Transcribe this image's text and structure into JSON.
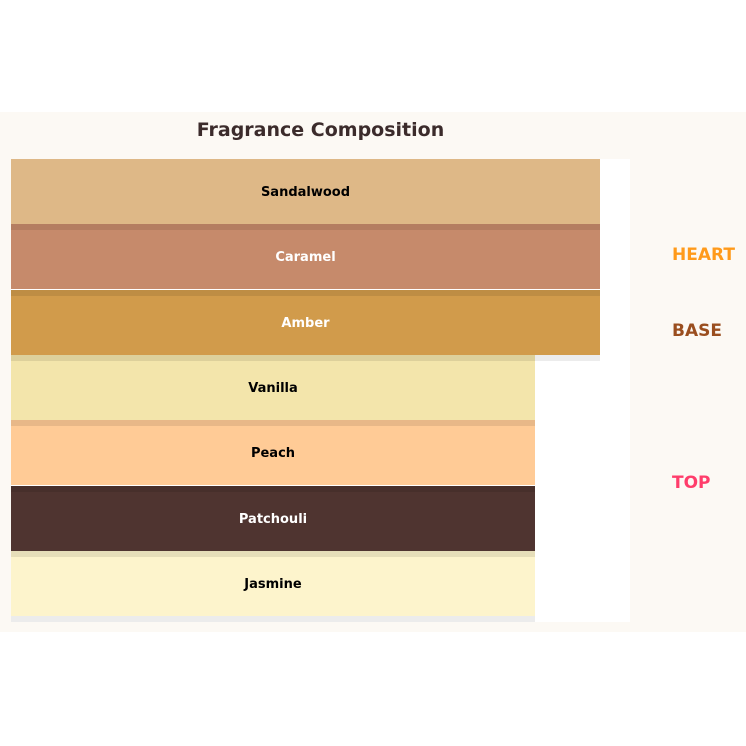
{
  "title": "Fragrance Composition",
  "layers": [
    {
      "label": "Sandalwood",
      "color": "#deb887",
      "text_color": "#000000",
      "relative_width": 1.0,
      "group": "base"
    },
    {
      "label": "Caramel",
      "color": "#c68a6b",
      "text_color": "#ffffff",
      "relative_width": 1.0,
      "group": "base"
    },
    {
      "label": "Amber",
      "color": "#d19b4b",
      "text_color": "#ffffff",
      "relative_width": 1.0,
      "group": "base"
    },
    {
      "label": "Vanilla",
      "color": "#f3e5ab",
      "text_color": "#000000",
      "relative_width": 0.89,
      "group": "top"
    },
    {
      "label": "Peach",
      "color": "#ffcb96",
      "text_color": "#000000",
      "relative_width": 0.89,
      "group": "top"
    },
    {
      "label": "Patchouli",
      "color": "#4f3430",
      "text_color": "#ffffff",
      "relative_width": 0.89,
      "group": "top"
    },
    {
      "label": "Jasmine",
      "color": "#fdf4cc",
      "text_color": "#000000",
      "relative_width": 0.89,
      "group": "top"
    }
  ],
  "tiers": [
    {
      "label": "HEART",
      "color": "#ff9a1a"
    },
    {
      "label": "BASE",
      "color": "#9a4e1f"
    },
    {
      "label": "TOP",
      "color": "#ff3d6b"
    }
  ]
}
